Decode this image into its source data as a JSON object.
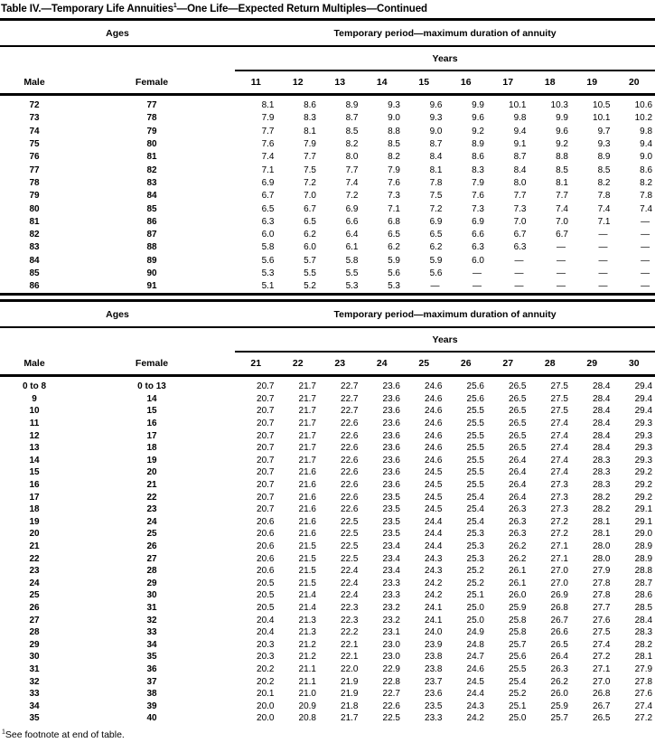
{
  "title": {
    "prefix": "Table IV.—Temporary Life Annuities",
    "superscript": "1",
    "suffix": "—One Life—Expected Return Multiples—Continued"
  },
  "footnote": {
    "superscript": "1",
    "text": "See footnote at end of table."
  },
  "tables": [
    {
      "ages_header": "Ages",
      "period_header": "Temporary period—maximum duration of annuity",
      "years_header": "Years",
      "male_header": "Male",
      "female_header": "Female",
      "year_columns": [
        "11",
        "12",
        "13",
        "14",
        "15",
        "16",
        "17",
        "18",
        "19",
        "20"
      ],
      "rows": [
        {
          "male": "72",
          "female": "77",
          "values": [
            "8.1",
            "8.6",
            "8.9",
            "9.3",
            "9.6",
            "9.9",
            "10.1",
            "10.3",
            "10.5",
            "10.6"
          ]
        },
        {
          "male": "73",
          "female": "78",
          "values": [
            "7.9",
            "8.3",
            "8.7",
            "9.0",
            "9.3",
            "9.6",
            "9.8",
            "9.9",
            "10.1",
            "10.2"
          ]
        },
        {
          "male": "74",
          "female": "79",
          "values": [
            "7.7",
            "8.1",
            "8.5",
            "8.8",
            "9.0",
            "9.2",
            "9.4",
            "9.6",
            "9.7",
            "9.8"
          ]
        },
        {
          "male": "75",
          "female": "80",
          "values": [
            "7.6",
            "7.9",
            "8.2",
            "8.5",
            "8.7",
            "8.9",
            "9.1",
            "9.2",
            "9.3",
            "9.4"
          ]
        },
        {
          "male": "76",
          "female": "81",
          "values": [
            "7.4",
            "7.7",
            "8.0",
            "8.2",
            "8.4",
            "8.6",
            "8.7",
            "8.8",
            "8.9",
            "9.0"
          ]
        },
        {
          "male": "77",
          "female": "82",
          "values": [
            "7.1",
            "7.5",
            "7.7",
            "7.9",
            "8.1",
            "8.3",
            "8.4",
            "8.5",
            "8.5",
            "8.6"
          ]
        },
        {
          "male": "78",
          "female": "83",
          "values": [
            "6.9",
            "7.2",
            "7.4",
            "7.6",
            "7.8",
            "7.9",
            "8.0",
            "8.1",
            "8.2",
            "8.2"
          ]
        },
        {
          "male": "79",
          "female": "84",
          "values": [
            "6.7",
            "7.0",
            "7.2",
            "7.3",
            "7.5",
            "7.6",
            "7.7",
            "7.7",
            "7.8",
            "7.8"
          ]
        },
        {
          "male": "80",
          "female": "85",
          "values": [
            "6.5",
            "6.7",
            "6.9",
            "7.1",
            "7.2",
            "7.3",
            "7.3",
            "7.4",
            "7.4",
            "7.4"
          ]
        },
        {
          "male": "81",
          "female": "86",
          "values": [
            "6.3",
            "6.5",
            "6.6",
            "6.8",
            "6.9",
            "6.9",
            "7.0",
            "7.0",
            "7.1",
            "—"
          ]
        },
        {
          "male": "82",
          "female": "87",
          "values": [
            "6.0",
            "6.2",
            "6.4",
            "6.5",
            "6.5",
            "6.6",
            "6.7",
            "6.7",
            "—",
            "—"
          ]
        },
        {
          "male": "83",
          "female": "88",
          "values": [
            "5.8",
            "6.0",
            "6.1",
            "6.2",
            "6.2",
            "6.3",
            "6.3",
            "—",
            "—",
            "—"
          ]
        },
        {
          "male": "84",
          "female": "89",
          "values": [
            "5.6",
            "5.7",
            "5.8",
            "5.9",
            "5.9",
            "6.0",
            "—",
            "—",
            "—",
            "—"
          ]
        },
        {
          "male": "85",
          "female": "90",
          "values": [
            "5.3",
            "5.5",
            "5.5",
            "5.6",
            "5.6",
            "—",
            "—",
            "—",
            "—",
            "—"
          ]
        },
        {
          "male": "86",
          "female": "91",
          "values": [
            "5.1",
            "5.2",
            "5.3",
            "5.3",
            "—",
            "—",
            "—",
            "—",
            "—",
            "—"
          ]
        }
      ]
    },
    {
      "ages_header": "Ages",
      "period_header": "Temporary period—maximum duration of annuity",
      "years_header": "Years",
      "male_header": "Male",
      "female_header": "Female",
      "year_columns": [
        "21",
        "22",
        "23",
        "24",
        "25",
        "26",
        "27",
        "28",
        "29",
        "30"
      ],
      "rows": [
        {
          "male": "0 to 8",
          "female": "0 to 13",
          "values": [
            "20.7",
            "21.7",
            "22.7",
            "23.6",
            "24.6",
            "25.6",
            "26.5",
            "27.5",
            "28.4",
            "29.4"
          ]
        },
        {
          "male": "9",
          "female": "14",
          "values": [
            "20.7",
            "21.7",
            "22.7",
            "23.6",
            "24.6",
            "25.6",
            "26.5",
            "27.5",
            "28.4",
            "29.4"
          ]
        },
        {
          "male": "10",
          "female": "15",
          "values": [
            "20.7",
            "21.7",
            "22.7",
            "23.6",
            "24.6",
            "25.5",
            "26.5",
            "27.5",
            "28.4",
            "29.4"
          ]
        },
        {
          "male": "11",
          "female": "16",
          "values": [
            "20.7",
            "21.7",
            "22.6",
            "23.6",
            "24.6",
            "25.5",
            "26.5",
            "27.4",
            "28.4",
            "29.3"
          ]
        },
        {
          "male": "12",
          "female": "17",
          "values": [
            "20.7",
            "21.7",
            "22.6",
            "23.6",
            "24.6",
            "25.5",
            "26.5",
            "27.4",
            "28.4",
            "29.3"
          ]
        },
        {
          "male": "13",
          "female": "18",
          "values": [
            "20.7",
            "21.7",
            "22.6",
            "23.6",
            "24.6",
            "25.5",
            "26.5",
            "27.4",
            "28.4",
            "29.3"
          ]
        },
        {
          "male": "14",
          "female": "19",
          "values": [
            "20.7",
            "21.7",
            "22.6",
            "23.6",
            "24.6",
            "25.5",
            "26.4",
            "27.4",
            "28.3",
            "29.3"
          ]
        },
        {
          "male": "15",
          "female": "20",
          "values": [
            "20.7",
            "21.6",
            "22.6",
            "23.6",
            "24.5",
            "25.5",
            "26.4",
            "27.4",
            "28.3",
            "29.2"
          ]
        },
        {
          "male": "16",
          "female": "21",
          "values": [
            "20.7",
            "21.6",
            "22.6",
            "23.6",
            "24.5",
            "25.5",
            "26.4",
            "27.3",
            "28.3",
            "29.2"
          ]
        },
        {
          "male": "17",
          "female": "22",
          "values": [
            "20.7",
            "21.6",
            "22.6",
            "23.5",
            "24.5",
            "25.4",
            "26.4",
            "27.3",
            "28.2",
            "29.2"
          ]
        },
        {
          "male": "18",
          "female": "23",
          "values": [
            "20.7",
            "21.6",
            "22.6",
            "23.5",
            "24.5",
            "25.4",
            "26.3",
            "27.3",
            "28.2",
            "29.1"
          ]
        },
        {
          "male": "19",
          "female": "24",
          "values": [
            "20.6",
            "21.6",
            "22.5",
            "23.5",
            "24.4",
            "25.4",
            "26.3",
            "27.2",
            "28.1",
            "29.1"
          ]
        },
        {
          "male": "20",
          "female": "25",
          "values": [
            "20.6",
            "21.6",
            "22.5",
            "23.5",
            "24.4",
            "25.3",
            "26.3",
            "27.2",
            "28.1",
            "29.0"
          ]
        },
        {
          "male": "21",
          "female": "26",
          "values": [
            "20.6",
            "21.5",
            "22.5",
            "23.4",
            "24.4",
            "25.3",
            "26.2",
            "27.1",
            "28.0",
            "28.9"
          ]
        },
        {
          "male": "22",
          "female": "27",
          "values": [
            "20.6",
            "21.5",
            "22.5",
            "23.4",
            "24.3",
            "25.3",
            "26.2",
            "27.1",
            "28.0",
            "28.9"
          ]
        },
        {
          "male": "23",
          "female": "28",
          "values": [
            "20.6",
            "21.5",
            "22.4",
            "23.4",
            "24.3",
            "25.2",
            "26.1",
            "27.0",
            "27.9",
            "28.8"
          ]
        },
        {
          "male": "24",
          "female": "29",
          "values": [
            "20.5",
            "21.5",
            "22.4",
            "23.3",
            "24.2",
            "25.2",
            "26.1",
            "27.0",
            "27.8",
            "28.7"
          ]
        },
        {
          "male": "25",
          "female": "30",
          "values": [
            "20.5",
            "21.4",
            "22.4",
            "23.3",
            "24.2",
            "25.1",
            "26.0",
            "26.9",
            "27.8",
            "28.6"
          ]
        },
        {
          "male": "26",
          "female": "31",
          "values": [
            "20.5",
            "21.4",
            "22.3",
            "23.2",
            "24.1",
            "25.0",
            "25.9",
            "26.8",
            "27.7",
            "28.5"
          ]
        },
        {
          "male": "27",
          "female": "32",
          "values": [
            "20.4",
            "21.3",
            "22.3",
            "23.2",
            "24.1",
            "25.0",
            "25.8",
            "26.7",
            "27.6",
            "28.4"
          ]
        },
        {
          "male": "28",
          "female": "33",
          "values": [
            "20.4",
            "21.3",
            "22.2",
            "23.1",
            "24.0",
            "24.9",
            "25.8",
            "26.6",
            "27.5",
            "28.3"
          ]
        },
        {
          "male": "29",
          "female": "34",
          "values": [
            "20.3",
            "21.2",
            "22.1",
            "23.0",
            "23.9",
            "24.8",
            "25.7",
            "26.5",
            "27.4",
            "28.2"
          ]
        },
        {
          "male": "30",
          "female": "35",
          "values": [
            "20.3",
            "21.2",
            "22.1",
            "23.0",
            "23.8",
            "24.7",
            "25.6",
            "26.4",
            "27.2",
            "28.1"
          ]
        },
        {
          "male": "31",
          "female": "36",
          "values": [
            "20.2",
            "21.1",
            "22.0",
            "22.9",
            "23.8",
            "24.6",
            "25.5",
            "26.3",
            "27.1",
            "27.9"
          ]
        },
        {
          "male": "32",
          "female": "37",
          "values": [
            "20.2",
            "21.1",
            "21.9",
            "22.8",
            "23.7",
            "24.5",
            "25.4",
            "26.2",
            "27.0",
            "27.8"
          ]
        },
        {
          "male": "33",
          "female": "38",
          "values": [
            "20.1",
            "21.0",
            "21.9",
            "22.7",
            "23.6",
            "24.4",
            "25.2",
            "26.0",
            "26.8",
            "27.6"
          ]
        },
        {
          "male": "34",
          "female": "39",
          "values": [
            "20.0",
            "20.9",
            "21.8",
            "22.6",
            "23.5",
            "24.3",
            "25.1",
            "25.9",
            "26.7",
            "27.4"
          ]
        },
        {
          "male": "35",
          "female": "40",
          "values": [
            "20.0",
            "20.8",
            "21.7",
            "22.5",
            "23.3",
            "24.2",
            "25.0",
            "25.7",
            "26.5",
            "27.2"
          ]
        }
      ]
    }
  ]
}
